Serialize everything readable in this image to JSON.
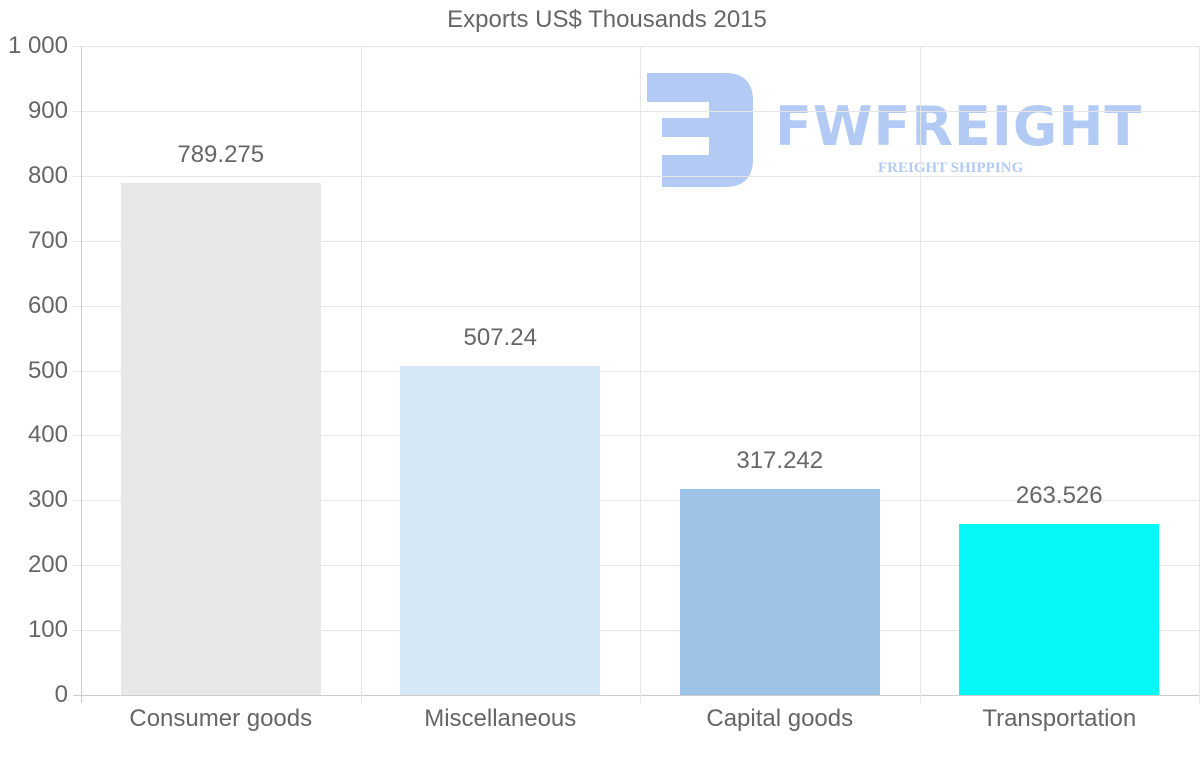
{
  "chart_data": {
    "type": "bar",
    "title": "Exports US$ Thousands 2015",
    "xlabel": "",
    "ylabel": "",
    "categories": [
      "Consumer goods",
      "Miscellaneous",
      "Capital goods",
      "Transportation"
    ],
    "values": [
      789.275,
      507.24,
      317.242,
      263.526
    ],
    "value_labels": [
      "789.275",
      "507.24",
      "317.242",
      "263.526"
    ],
    "colors": [
      "#e8e8e8",
      "#d6e7f8",
      "#9cc3e6",
      "#05f7f7"
    ],
    "ylim": [
      0,
      1000
    ],
    "yticks": [
      0,
      100,
      200,
      300,
      400,
      500,
      600,
      700,
      800,
      900,
      1000
    ],
    "ytick_labels": [
      "0",
      "100",
      "200",
      "300",
      "400",
      "500",
      "600",
      "700",
      "800",
      "900",
      "1 000"
    ],
    "grid": true,
    "legend": null
  },
  "watermark": {
    "brand": "FWFREIGHT",
    "tagline": "FREIGHT SHIPPING",
    "color": "#b3cbf4"
  }
}
